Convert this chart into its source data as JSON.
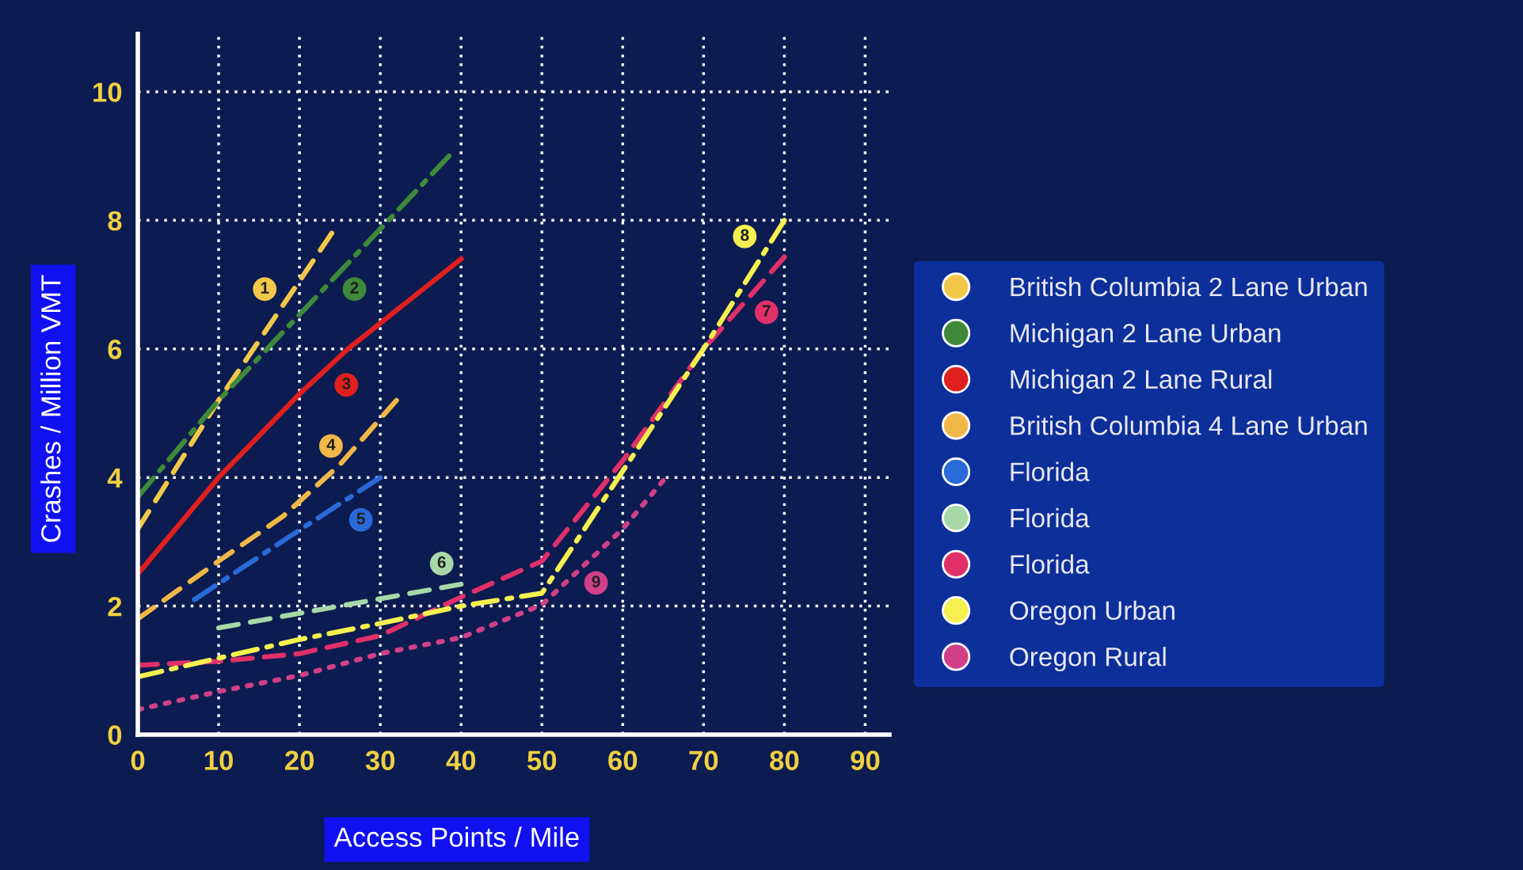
{
  "chart_data": {
    "type": "line",
    "xlabel": "Access Points / Mile",
    "ylabel": "Crashes / Million VMT",
    "xlim": [
      0,
      93
    ],
    "xticks": [
      0,
      10,
      20,
      30,
      40,
      50,
      60,
      70,
      80,
      90
    ],
    "ylim": [
      0,
      10.9
    ],
    "yticks": [
      0,
      2,
      4,
      6,
      8,
      10
    ],
    "grid": true,
    "legend": "right",
    "series": [
      {
        "name": "British Columbia 2 Lane Urban",
        "color": "#f2c84a",
        "line_style": "dashed",
        "x": [
          0,
          10,
          24
        ],
        "values": [
          3.2,
          5.2,
          7.8
        ]
      },
      {
        "name": "Michigan 2 Lane Urban",
        "color": "#3f8a3a",
        "line_style": "dashdot",
        "x": [
          0,
          10,
          38.5
        ],
        "values": [
          3.7,
          5.2,
          9.0
        ]
      },
      {
        "name": "Michigan 2 Lane Rural",
        "color": "#e0201e",
        "line_style": "solid",
        "x": [
          0,
          10,
          20,
          26,
          40
        ],
        "values": [
          2.5,
          4.0,
          5.3,
          6.0,
          7.4
        ]
      },
      {
        "name": "British Columbia 4 Lane Urban",
        "color": "#f0b848",
        "line_style": "dashed",
        "x": [
          0,
          10,
          18,
          25,
          32
        ],
        "values": [
          1.8,
          2.7,
          3.4,
          4.2,
          5.2
        ]
      },
      {
        "name": "Florida",
        "color": "#2a6ad8",
        "line_style": "dashdot",
        "x": [
          7,
          19,
          30
        ],
        "values": [
          2.1,
          3.1,
          4.0
        ]
      },
      {
        "name": "Florida",
        "color": "#a8d8a8",
        "line_style": "dashed",
        "x": [
          10,
          40
        ],
        "values": [
          1.66,
          2.34
        ]
      },
      {
        "name": "Florida",
        "color": "#e0306a",
        "line_style": "dashed",
        "x": [
          0,
          10,
          20,
          30,
          40,
          50,
          60,
          70,
          80
        ],
        "values": [
          1.08,
          1.14,
          1.26,
          1.54,
          2.14,
          2.7,
          4.26,
          6.0,
          7.43
        ]
      },
      {
        "name": "Oregon Urban",
        "color": "#f5f050",
        "line_style": "dashdot",
        "x": [
          0,
          10,
          20,
          30,
          40,
          50,
          60,
          70,
          80
        ],
        "values": [
          0.9,
          1.19,
          1.48,
          1.73,
          2.0,
          2.2,
          4.1,
          6.0,
          8.0
        ]
      },
      {
        "name": "Oregon Rural",
        "color": "#d04088",
        "line_style": "dotted",
        "x": [
          0,
          10,
          20,
          30,
          40,
          50,
          60,
          65
        ],
        "values": [
          0.39,
          0.67,
          0.92,
          1.26,
          1.51,
          2.02,
          3.2,
          3.95
        ]
      }
    ],
    "annotations": [
      {
        "text": "1",
        "x": 15.7,
        "y": 6.93
      },
      {
        "text": "2",
        "x": 26.8,
        "y": 6.93
      },
      {
        "text": "3",
        "x": 25.8,
        "y": 5.44
      },
      {
        "text": "4",
        "x": 23.9,
        "y": 4.49
      },
      {
        "text": "5",
        "x": 27.6,
        "y": 3.34
      },
      {
        "text": "6",
        "x": 37.6,
        "y": 2.66
      },
      {
        "text": "7",
        "x": 77.8,
        "y": 6.57
      },
      {
        "text": "8",
        "x": 75.1,
        "y": 7.75
      },
      {
        "text": "9",
        "x": 56.7,
        "y": 2.36
      }
    ]
  }
}
